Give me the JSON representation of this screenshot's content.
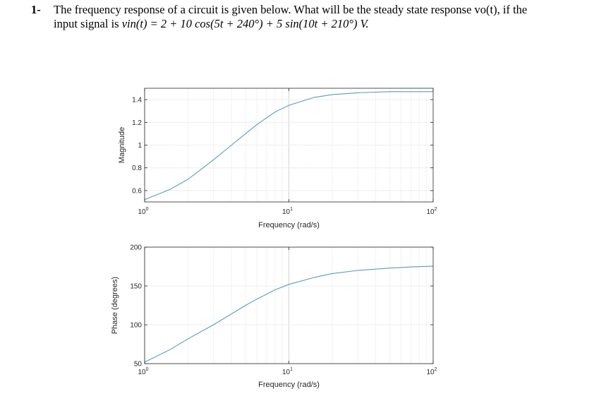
{
  "question": {
    "number": "1-",
    "line1": "The frequency response of a circuit is given below. What will be the steady state response  vo(t), if the",
    "line2_prefix": "input signal is ",
    "line2_math": "vin(t) = 2 + 10 cos(5t + 240°) + 5 sin(10t + 210°) V.",
    "line2_suffix": ""
  },
  "chart_data": [
    {
      "type": "line",
      "title": "",
      "xlabel": "Frequency (rad/s)",
      "ylabel": "Magnitude",
      "xscale": "log",
      "xlim": [
        1,
        100
      ],
      "ylim": [
        0.5,
        1.5
      ],
      "xticks": [
        {
          "value": 1,
          "base": "10",
          "exp": "0"
        },
        {
          "value": 10,
          "base": "10",
          "exp": "1"
        },
        {
          "value": 100,
          "base": "10",
          "exp": "2"
        }
      ],
      "yticks": [
        0.6,
        0.8,
        1,
        1.2,
        1.4
      ],
      "ytick_labels": [
        "0.6",
        "0.8",
        "1",
        "1.2",
        "1.4"
      ],
      "grid": true,
      "line_color": "#5b9bbf",
      "series": [
        {
          "x": [
            1,
            1.5,
            2,
            3,
            4,
            5,
            6,
            7,
            8,
            10,
            15,
            20,
            30,
            50,
            100
          ],
          "y": [
            0.52,
            0.61,
            0.7,
            0.87,
            1.0,
            1.1,
            1.18,
            1.24,
            1.29,
            1.35,
            1.42,
            1.445,
            1.46,
            1.47,
            1.47
          ]
        }
      ]
    },
    {
      "type": "line",
      "title": "",
      "xlabel": "Frequency (rad/s)",
      "ylabel": "Phase (degrees)",
      "xscale": "log",
      "xlim": [
        1,
        100
      ],
      "ylim": [
        50,
        200
      ],
      "xticks": [
        {
          "value": 1,
          "base": "10",
          "exp": "0"
        },
        {
          "value": 10,
          "base": "10",
          "exp": "1"
        },
        {
          "value": 100,
          "base": "10",
          "exp": "2"
        }
      ],
      "yticks": [
        50,
        100,
        150,
        200
      ],
      "ytick_labels": [
        "50",
        "100",
        "150",
        "200"
      ],
      "grid": true,
      "line_color": "#5b9bbf",
      "series": [
        {
          "x": [
            1,
            1.5,
            2,
            3,
            4,
            5,
            6,
            8,
            10,
            15,
            20,
            30,
            50,
            70,
            100
          ],
          "y": [
            52,
            68,
            82,
            100,
            114,
            125,
            133,
            145,
            152,
            161,
            166,
            170,
            173,
            174.5,
            175.5
          ]
        }
      ]
    }
  ]
}
